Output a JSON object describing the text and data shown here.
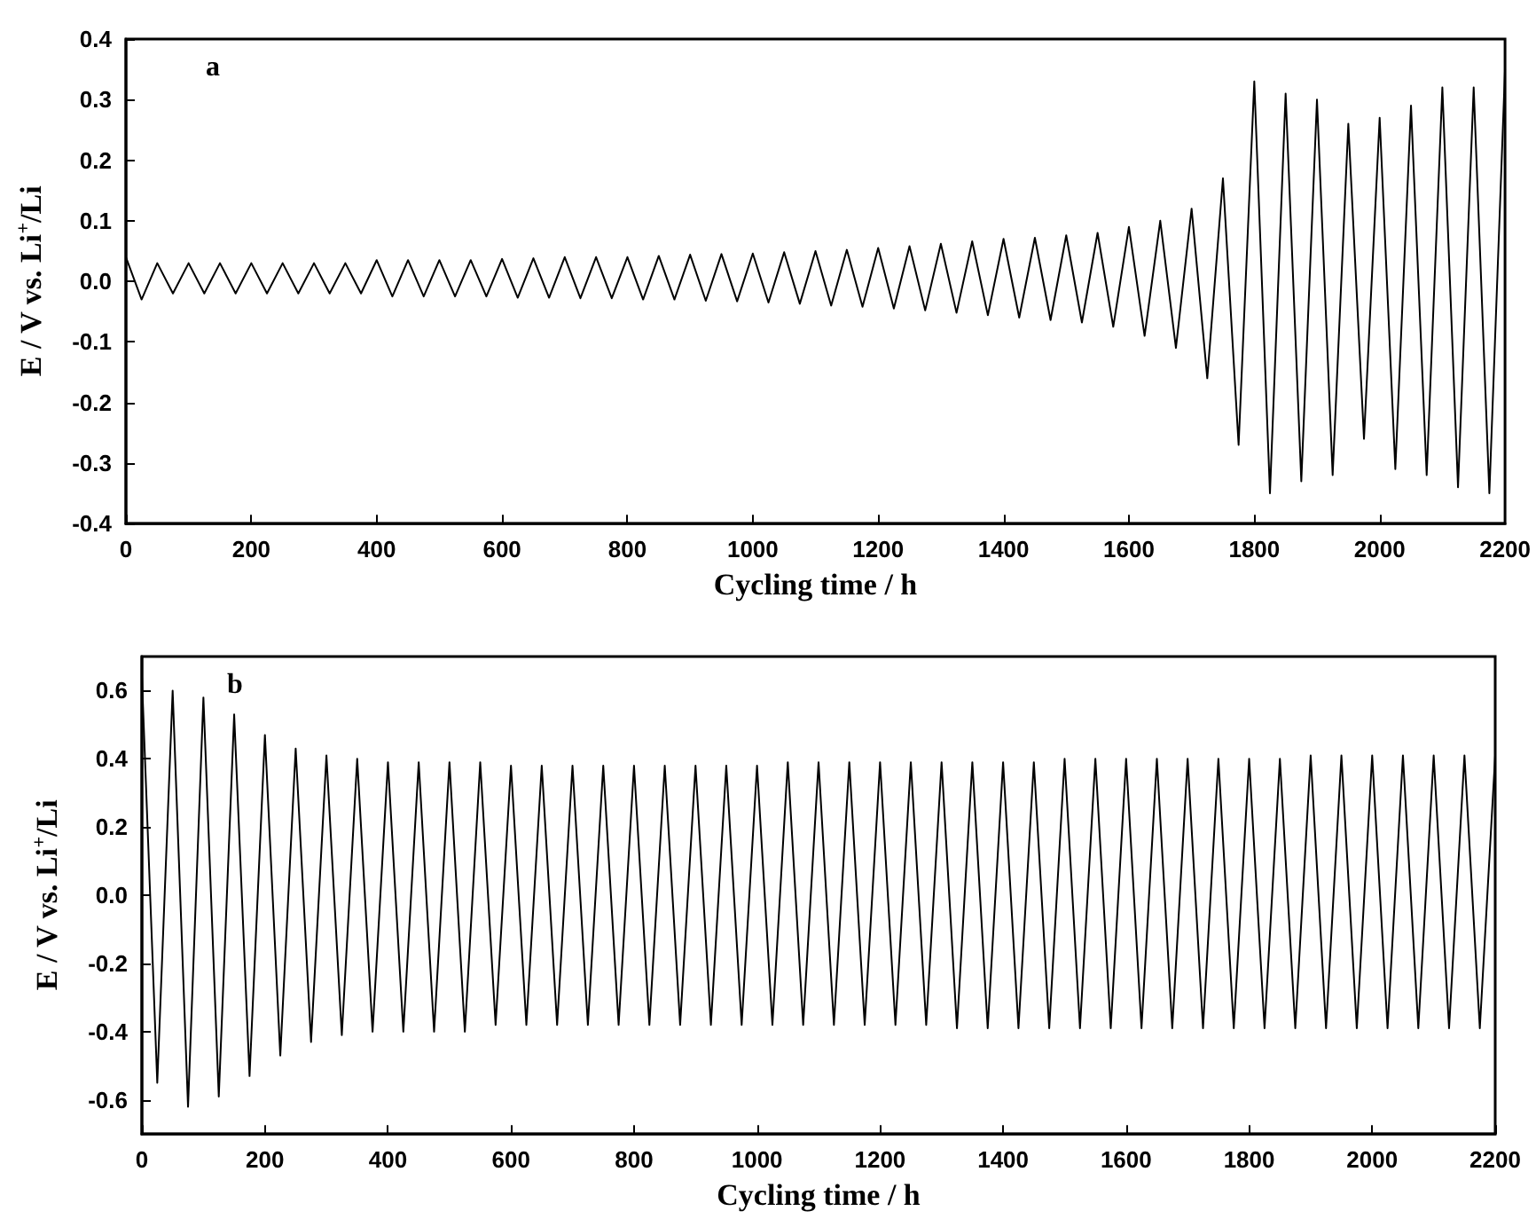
{
  "chart_data": [
    {
      "type": "line",
      "xlabel": "Cycling time / h",
      "ylabel": "E / V vs. Li$^{+}$/Li",
      "annotations": [
        "a"
      ],
      "xlim": [
        0,
        2200
      ],
      "xticks": [
        0,
        200,
        400,
        600,
        800,
        1000,
        1200,
        1400,
        1600,
        1800,
        2000,
        2200
      ],
      "ylim": [
        -0.4,
        0.4
      ],
      "yticks": [
        -0.4,
        -0.3,
        -0.2,
        -0.1,
        {
          "value": 0,
          "label": "0.0"
        },
        0.1,
        0.2,
        0.3,
        0.4
      ],
      "series": [
        {
          "color": "#000000",
          "x": [
            0,
            25,
            50,
            75,
            100,
            125,
            150,
            175,
            200,
            225,
            250,
            275,
            300,
            325,
            350,
            375,
            400,
            425,
            450,
            475,
            500,
            525,
            550,
            575,
            600,
            625,
            650,
            675,
            700,
            725,
            750,
            775,
            800,
            825,
            850,
            875,
            900,
            925,
            950,
            975,
            1000,
            1025,
            1050,
            1075,
            1100,
            1125,
            1150,
            1175,
            1200,
            1225,
            1250,
            1275,
            1300,
            1325,
            1350,
            1375,
            1400,
            1425,
            1450,
            1475,
            1500,
            1525,
            1550,
            1575,
            1600,
            1625,
            1650,
            1675,
            1700,
            1725,
            1750,
            1775,
            1800,
            1825,
            1850,
            1875,
            1900,
            1925,
            1950,
            1975,
            2000,
            2025,
            2050,
            2075,
            2100,
            2125,
            2150,
            2175,
            2200
          ],
          "values": [
            0.04,
            -0.03,
            0.03,
            -0.02,
            0.03,
            -0.02,
            0.03,
            -0.02,
            0.03,
            -0.02,
            0.03,
            -0.02,
            0.03,
            -0.02,
            0.03,
            -0.02,
            0.035,
            -0.025,
            0.035,
            -0.025,
            0.035,
            -0.025,
            0.035,
            -0.025,
            0.037,
            -0.027,
            0.038,
            -0.027,
            0.04,
            -0.028,
            0.04,
            -0.028,
            0.04,
            -0.03,
            0.042,
            -0.03,
            0.044,
            -0.032,
            0.045,
            -0.033,
            0.046,
            -0.035,
            0.048,
            -0.037,
            0.05,
            -0.04,
            0.052,
            -0.042,
            0.055,
            -0.045,
            0.058,
            -0.048,
            0.062,
            -0.052,
            0.066,
            -0.056,
            0.07,
            -0.06,
            0.072,
            -0.064,
            0.076,
            -0.068,
            0.08,
            -0.075,
            0.09,
            -0.09,
            0.1,
            -0.11,
            0.12,
            -0.16,
            0.17,
            -0.27,
            0.33,
            -0.35,
            0.31,
            -0.33,
            0.3,
            -0.32,
            0.26,
            -0.26,
            0.27,
            -0.31,
            0.29,
            -0.32,
            0.32,
            -0.34,
            0.32,
            -0.35,
            0.35
          ]
        }
      ]
    },
    {
      "type": "line",
      "xlabel": "Cycling time / h",
      "ylabel": "E / V vs. Li$^{+}$/Li",
      "annotations": [
        "b"
      ],
      "xlim": [
        0,
        2200
      ],
      "xticks": [
        0,
        200,
        400,
        600,
        800,
        1000,
        1200,
        1400,
        1600,
        1800,
        2000,
        2200
      ],
      "ylim": [
        -0.7,
        0.7
      ],
      "yticks": [
        -0.6,
        -0.4,
        -0.2,
        {
          "value": 0,
          "label": "0.0"
        },
        0.2,
        0.4,
        0.6
      ],
      "series": [
        {
          "color": "#000000",
          "x": [
            0,
            25,
            50,
            75,
            100,
            125,
            150,
            175,
            200,
            225,
            250,
            275,
            300,
            325,
            350,
            375,
            400,
            425,
            450,
            475,
            500,
            525,
            550,
            575,
            600,
            625,
            650,
            675,
            700,
            725,
            750,
            775,
            800,
            825,
            850,
            875,
            900,
            925,
            950,
            975,
            1000,
            1025,
            1050,
            1075,
            1100,
            1125,
            1150,
            1175,
            1200,
            1225,
            1250,
            1275,
            1300,
            1325,
            1350,
            1375,
            1400,
            1425,
            1450,
            1475,
            1500,
            1525,
            1550,
            1575,
            1600,
            1625,
            1650,
            1675,
            1700,
            1725,
            1750,
            1775,
            1800,
            1825,
            1850,
            1875,
            1900,
            1925,
            1950,
            1975,
            2000,
            2025,
            2050,
            2075,
            2100,
            2125,
            2150,
            2175,
            2200
          ],
          "values": [
            0.64,
            -0.55,
            0.6,
            -0.62,
            0.58,
            -0.59,
            0.53,
            -0.53,
            0.47,
            -0.47,
            0.43,
            -0.43,
            0.41,
            -0.41,
            0.4,
            -0.4,
            0.39,
            -0.4,
            0.39,
            -0.4,
            0.39,
            -0.4,
            0.39,
            -0.38,
            0.38,
            -0.38,
            0.38,
            -0.38,
            0.38,
            -0.38,
            0.38,
            -0.38,
            0.38,
            -0.38,
            0.38,
            -0.38,
            0.38,
            -0.38,
            0.38,
            -0.38,
            0.38,
            -0.38,
            0.39,
            -0.38,
            0.39,
            -0.38,
            0.39,
            -0.38,
            0.39,
            -0.38,
            0.39,
            -0.38,
            0.39,
            -0.39,
            0.39,
            -0.39,
            0.39,
            -0.39,
            0.39,
            -0.39,
            0.4,
            -0.39,
            0.4,
            -0.39,
            0.4,
            -0.39,
            0.4,
            -0.39,
            0.4,
            -0.39,
            0.4,
            -0.39,
            0.4,
            -0.39,
            0.4,
            -0.39,
            0.41,
            -0.39,
            0.41,
            -0.39,
            0.41,
            -0.39,
            0.41,
            -0.39,
            0.41,
            -0.39,
            0.41,
            -0.39,
            0.41
          ]
        }
      ]
    }
  ]
}
